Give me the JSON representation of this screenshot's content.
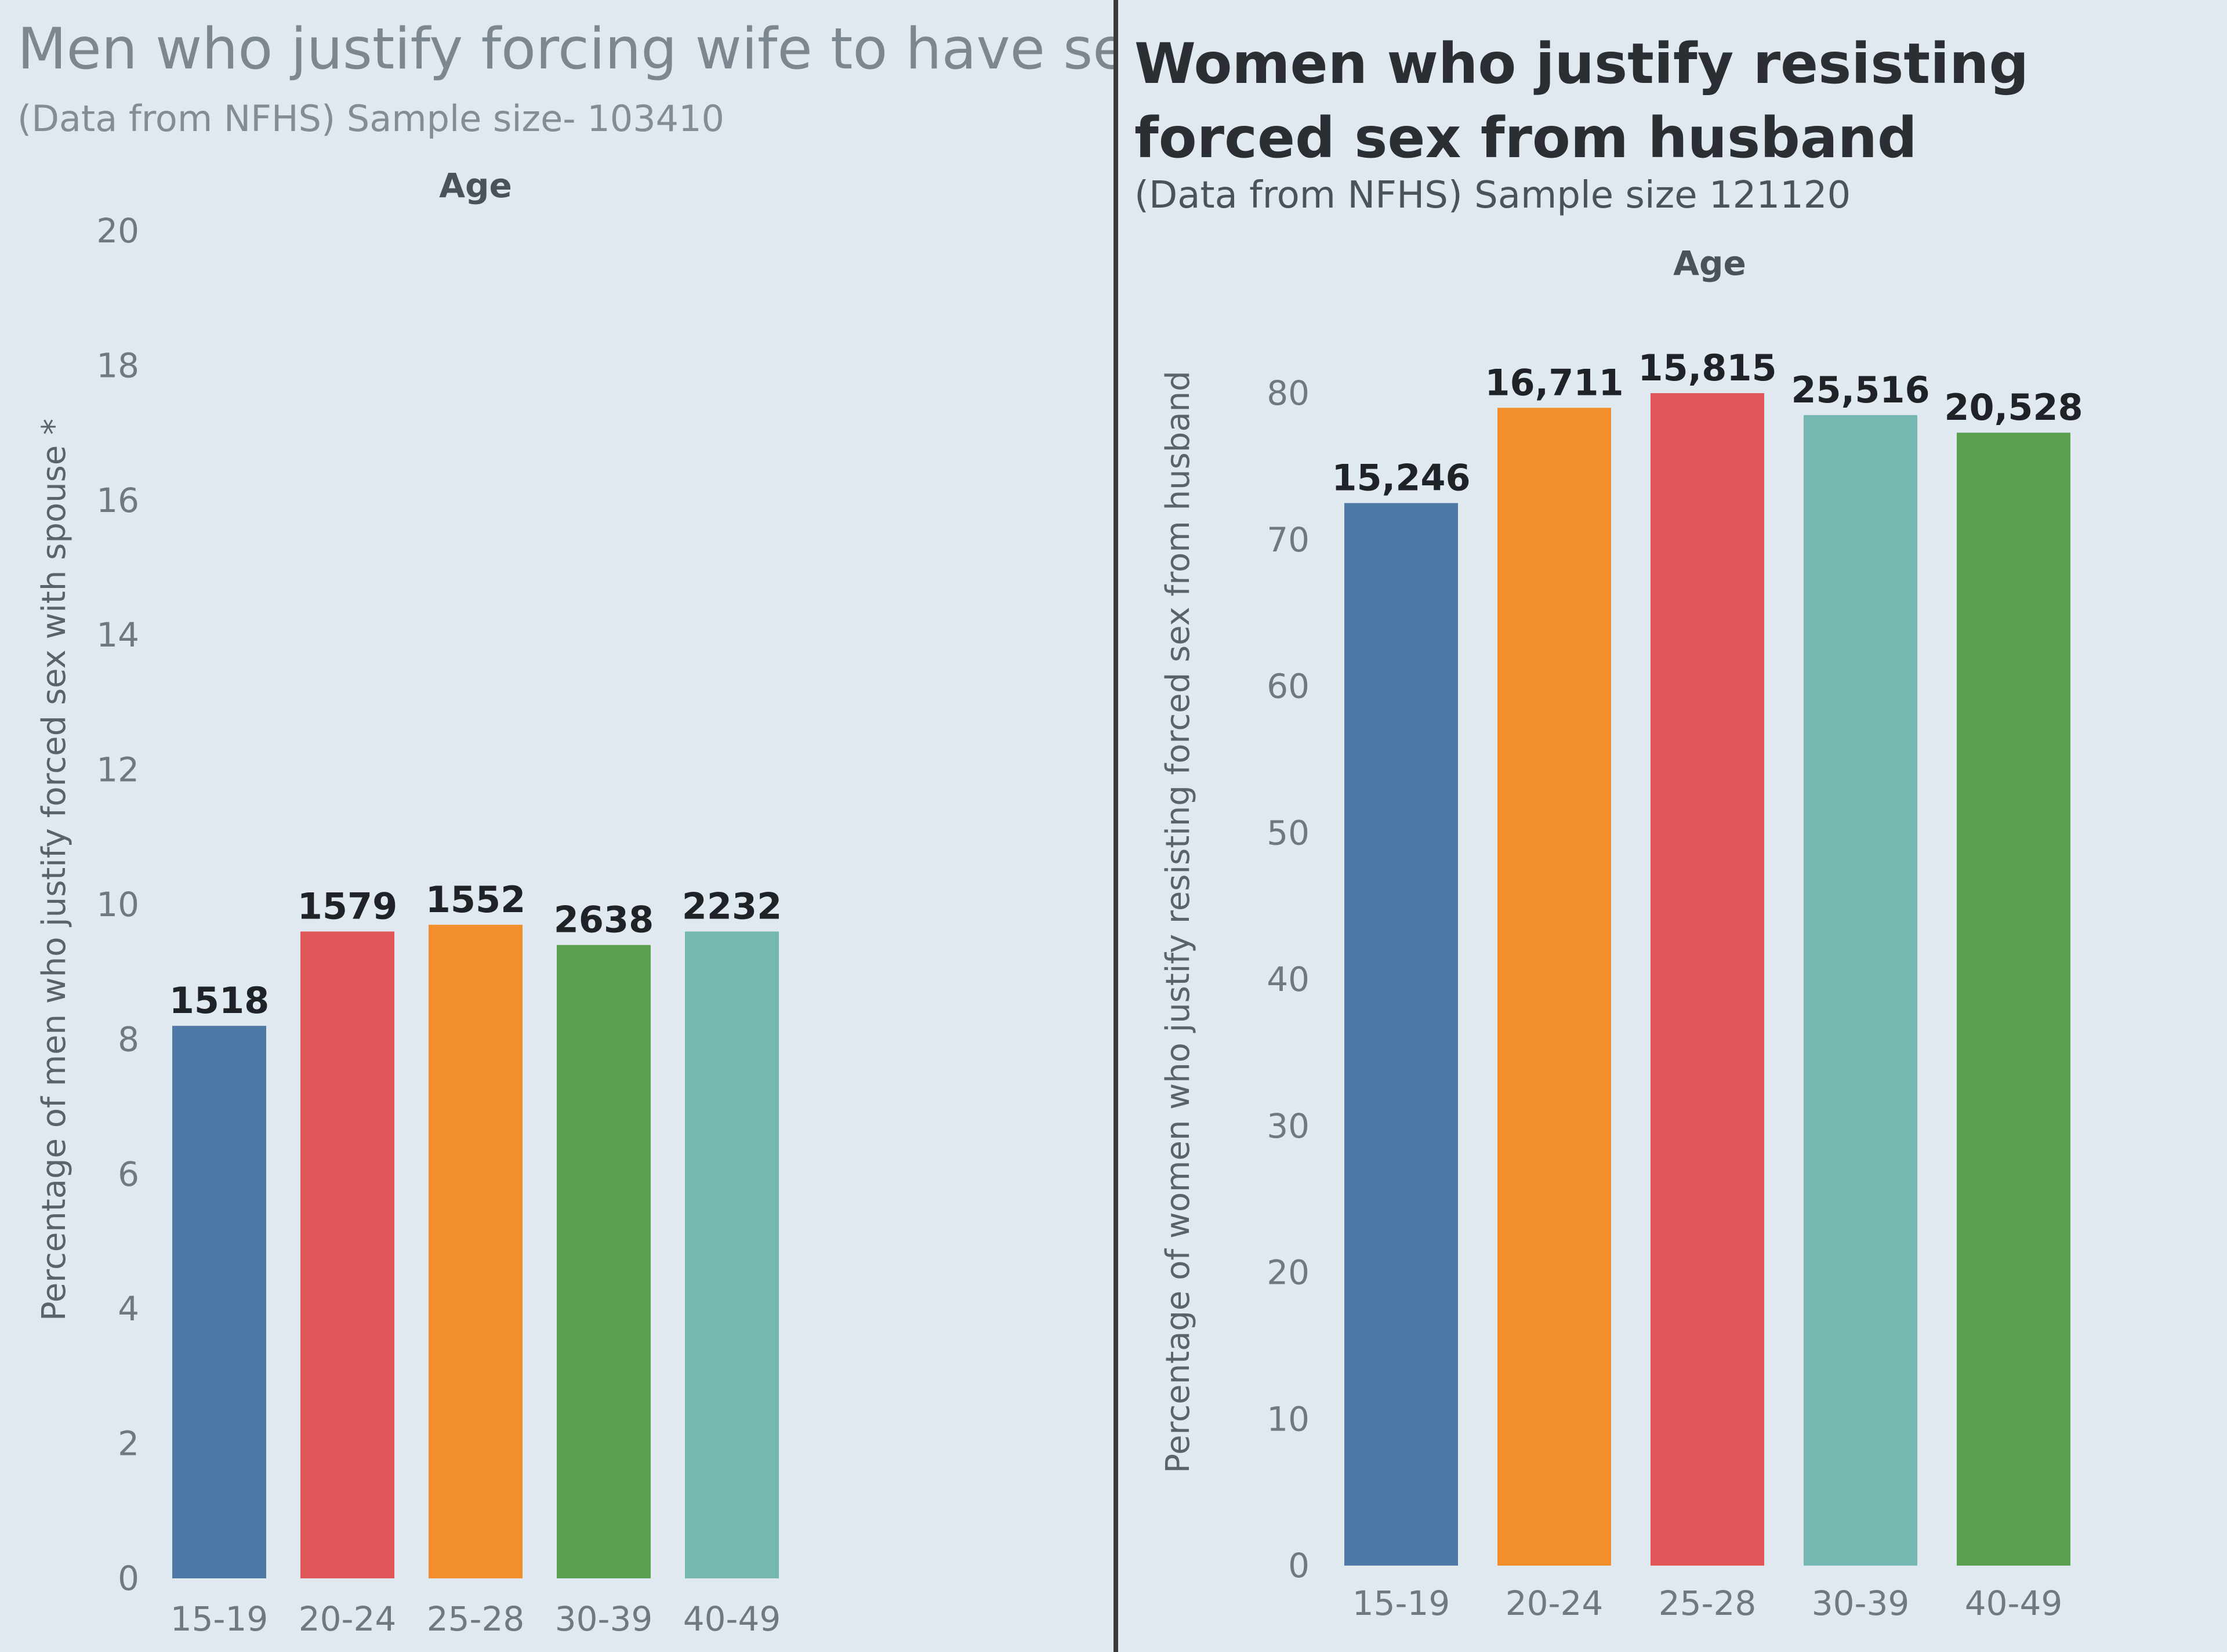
{
  "chart_data": [
    {
      "type": "bar",
      "title": "Men who justify forcing wife to have sex",
      "subtitle": "(Data from NFHS)  Sample size- 103410",
      "xlabel": "Age",
      "ylabel": "Percentage of men who justify forced sex with spouse",
      "ylabel_marker": "*",
      "ylim": [
        0,
        20
      ],
      "yticks": [
        0,
        2,
        4,
        6,
        8,
        10,
        12,
        14,
        16,
        18,
        20
      ],
      "categories": [
        "15-19",
        "20-24",
        "25-28",
        "30-39",
        "40-49"
      ],
      "values": [
        8.2,
        9.6,
        9.7,
        9.4,
        9.6
      ],
      "data_labels": [
        "1518",
        "1579",
        "1552",
        "2638",
        "2232"
      ],
      "colors": [
        "#4e79a7",
        "#e15759",
        "#f28e2b",
        "#59a14f",
        "#76b7b2"
      ]
    },
    {
      "type": "bar",
      "title": "Women who justify resisting forced sex from husband",
      "subtitle": "(Data from NFHS) Sample size 121120",
      "xlabel": "Age",
      "ylabel": "Percentage of women who justify resisting forced sex from husband",
      "ylim": [
        0,
        80
      ],
      "yticks": [
        0,
        10,
        20,
        30,
        40,
        50,
        60,
        70,
        80
      ],
      "categories": [
        "15-19",
        "20-24",
        "25-28",
        "30-39",
        "40-49"
      ],
      "values": [
        72.5,
        79,
        80,
        78.5,
        77.3
      ],
      "data_labels": [
        "15,246",
        "16,711",
        "15,815",
        "25,516",
        "20,528"
      ],
      "colors": [
        "#4e79a7",
        "#f28e2b",
        "#e15759",
        "#76b7b2",
        "#59a14f"
      ]
    }
  ]
}
